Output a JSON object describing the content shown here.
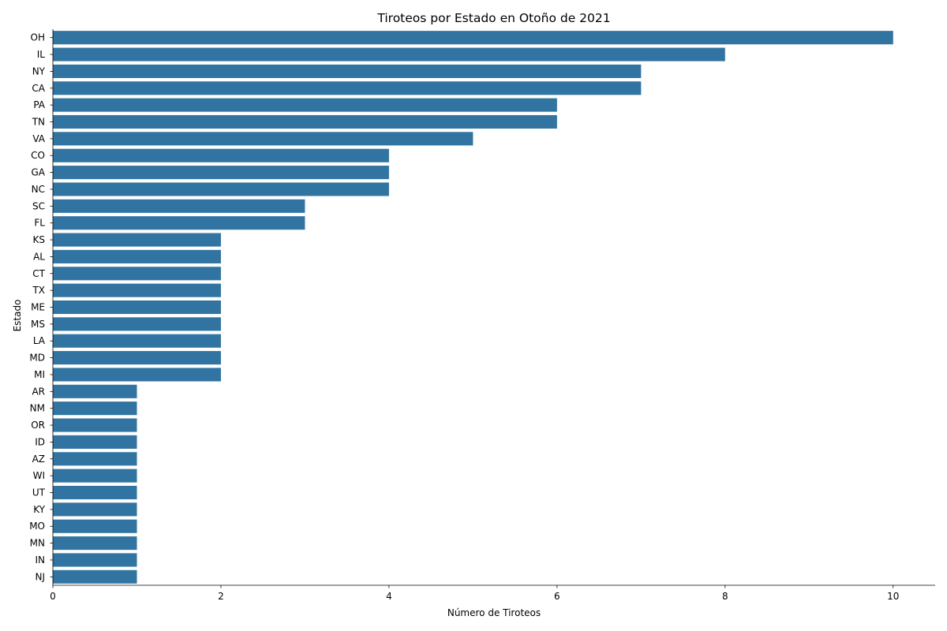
{
  "chart_data": {
    "type": "bar",
    "orientation": "horizontal",
    "title": "Tiroteos por Estado en Otoño de 2021",
    "xlabel": "Número de Tiroteos",
    "ylabel": "Estado",
    "xlim": [
      0,
      10.5
    ],
    "xticks": [
      "0",
      "2",
      "4",
      "6",
      "8",
      "10"
    ],
    "grid": false,
    "bar_color": "#3274a1",
    "categories": [
      "OH",
      "IL",
      "NY",
      "CA",
      "PA",
      "TN",
      "VA",
      "CO",
      "GA",
      "NC",
      "SC",
      "FL",
      "KS",
      "AL",
      "CT",
      "TX",
      "ME",
      "MS",
      "LA",
      "MD",
      "MI",
      "AR",
      "NM",
      "OR",
      "ID",
      "AZ",
      "WI",
      "UT",
      "KY",
      "MO",
      "MN",
      "IN",
      "NJ"
    ],
    "values": [
      10,
      8,
      7,
      7,
      6,
      6,
      5,
      4,
      4,
      4,
      3,
      3,
      2,
      2,
      2,
      2,
      2,
      2,
      2,
      2,
      2,
      1,
      1,
      1,
      1,
      1,
      1,
      1,
      1,
      1,
      1,
      1,
      1
    ]
  }
}
